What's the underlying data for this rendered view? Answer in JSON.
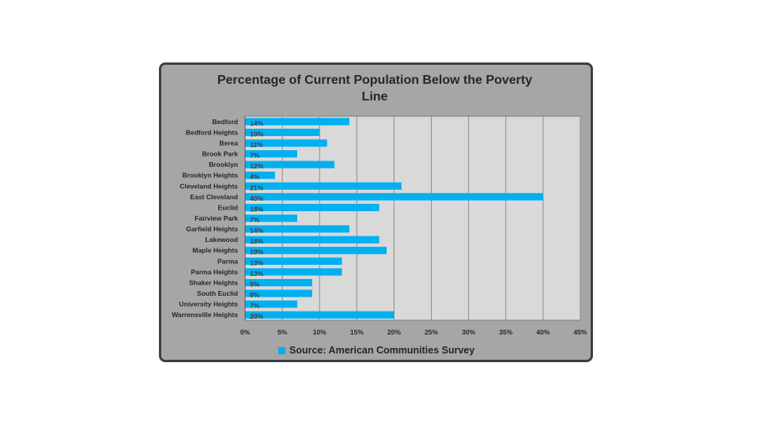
{
  "chart_data": {
    "type": "bar",
    "orientation": "horizontal",
    "title": "Percentage of Current Population Below the Poverty Line",
    "categories": [
      "Bedford",
      "Bedford Heights",
      "Berea",
      "Brook Park",
      "Brooklyn",
      "Brooklyn Heights",
      "Cleveland Heights",
      "East Cleveland",
      "Euclid",
      "Fairview Park",
      "Garfield Heights",
      "Lakewood",
      "Maple Heights",
      "Parma",
      "Parma Heights",
      "Shaker Heights",
      "South Euclid",
      "University Heights",
      "Warrensville Heights"
    ],
    "series": [
      {
        "name": "Source: American Communities Survey",
        "values": [
          14,
          10,
          11,
          7,
          12,
          4,
          21,
          40,
          18,
          7,
          14,
          18,
          19,
          13,
          13,
          9,
          9,
          7,
          20
        ],
        "data_labels": [
          "14%",
          "10%",
          "11%",
          "7%",
          "12%",
          "4%",
          "21%",
          "40%",
          "18%",
          "7%",
          "14%",
          "18%",
          "19%",
          "13%",
          "13%",
          "9%",
          "9%",
          "7%",
          "20%"
        ],
        "color": "#00b0f0"
      }
    ],
    "xlim": [
      0,
      45
    ],
    "xticks": [
      0,
      5,
      10,
      15,
      20,
      25,
      30,
      35,
      40,
      45
    ],
    "xtick_labels": [
      "0%",
      "5%",
      "10%",
      "15%",
      "20%",
      "25%",
      "30%",
      "35%",
      "40%",
      "45%"
    ],
    "xlabel": "",
    "ylabel": "",
    "grid": true,
    "legend": "bottom",
    "colors": {
      "bar": "#00b0f0",
      "plot_background": "#d9d9d9",
      "frame_background": "#a6a6a6",
      "gridline": "#8c8c8c"
    }
  }
}
